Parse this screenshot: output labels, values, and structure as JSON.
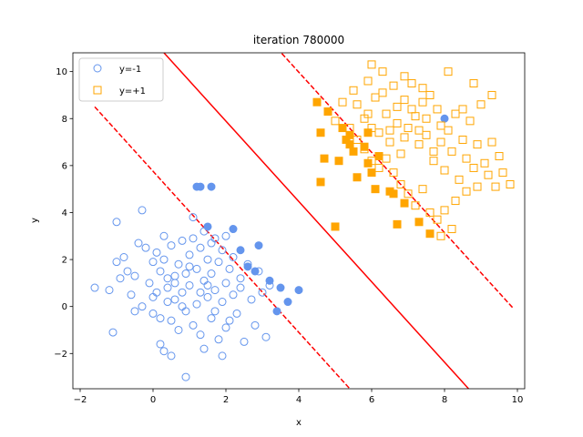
{
  "chart_data": {
    "type": "scatter",
    "title": "iteration 780000",
    "xlabel": "x",
    "ylabel": "y",
    "xlim": [
      -2.2,
      10.2
    ],
    "ylim": [
      -3.5,
      10.8
    ],
    "xticks": [
      -2,
      0,
      2,
      4,
      6,
      8,
      10
    ],
    "yticks": [
      -2,
      0,
      2,
      4,
      6,
      8,
      10
    ],
    "legend_position": "top-left",
    "series": [
      {
        "name": "y=-1",
        "marker": "circle",
        "color": "#6495ED",
        "filled": false,
        "points": [
          [
            -1.6,
            0.8
          ],
          [
            -1.2,
            0.7
          ],
          [
            -1.1,
            -1.1
          ],
          [
            -1.0,
            1.9
          ],
          [
            -1.0,
            3.6
          ],
          [
            -0.9,
            1.2
          ],
          [
            -0.8,
            2.1
          ],
          [
            -0.7,
            1.5
          ],
          [
            -0.6,
            0.5
          ],
          [
            -0.5,
            1.3
          ],
          [
            -0.4,
            2.7
          ],
          [
            -0.3,
            0.0
          ],
          [
            -0.3,
            4.1
          ],
          [
            -0.2,
            2.5
          ],
          [
            -0.1,
            1.0
          ],
          [
            0.0,
            1.9
          ],
          [
            0.0,
            -0.3
          ],
          [
            0.1,
            2.3
          ],
          [
            0.1,
            0.6
          ],
          [
            0.2,
            -0.5
          ],
          [
            0.2,
            1.5
          ],
          [
            0.3,
            3.0
          ],
          [
            0.3,
            2.0
          ],
          [
            0.4,
            0.2
          ],
          [
            0.4,
            1.2
          ],
          [
            0.5,
            -0.6
          ],
          [
            0.5,
            2.6
          ],
          [
            0.6,
            1.0
          ],
          [
            0.6,
            0.3
          ],
          [
            0.7,
            1.8
          ],
          [
            0.7,
            -1.0
          ],
          [
            0.8,
            2.8
          ],
          [
            0.8,
            0.6
          ],
          [
            0.9,
            1.4
          ],
          [
            0.9,
            -0.2
          ],
          [
            1.0,
            2.2
          ],
          [
            1.0,
            0.9
          ],
          [
            1.1,
            3.8
          ],
          [
            1.1,
            -0.8
          ],
          [
            1.2,
            1.6
          ],
          [
            1.2,
            0.1
          ],
          [
            1.3,
            2.5
          ],
          [
            1.3,
            -1.2
          ],
          [
            1.4,
            1.1
          ],
          [
            1.4,
            3.2
          ],
          [
            1.5,
            0.4
          ],
          [
            1.5,
            2.0
          ],
          [
            1.6,
            -0.5
          ],
          [
            1.6,
            1.4
          ],
          [
            1.7,
            2.9
          ],
          [
            1.7,
            0.7
          ],
          [
            1.8,
            -1.4
          ],
          [
            1.8,
            1.9
          ],
          [
            1.9,
            0.2
          ],
          [
            1.9,
            2.4
          ],
          [
            2.0,
            1.0
          ],
          [
            2.0,
            -0.9
          ],
          [
            2.1,
            1.6
          ],
          [
            2.2,
            0.5
          ],
          [
            2.2,
            2.1
          ],
          [
            2.3,
            -0.3
          ],
          [
            2.4,
            1.2
          ],
          [
            2.4,
            0.8
          ],
          [
            2.5,
            -1.5
          ],
          [
            2.6,
            1.8
          ],
          [
            2.7,
            0.3
          ],
          [
            2.8,
            -0.8
          ],
          [
            2.9,
            1.5
          ],
          [
            3.0,
            0.6
          ],
          [
            3.1,
            -1.3
          ],
          [
            3.2,
            0.9
          ],
          [
            -0.5,
            -0.2
          ],
          [
            0.0,
            0.4
          ],
          [
            0.3,
            -1.9
          ],
          [
            0.5,
            -2.1
          ],
          [
            0.9,
            -3.0
          ],
          [
            1.4,
            -1.8
          ],
          [
            1.9,
            -2.1
          ],
          [
            0.2,
            -1.6
          ],
          [
            1.1,
            2.9
          ],
          [
            1.6,
            2.7
          ],
          [
            2.0,
            3.0
          ],
          [
            0.6,
            1.3
          ],
          [
            1.0,
            1.7
          ],
          [
            1.5,
            0.9
          ],
          [
            0.8,
            0.0
          ],
          [
            1.3,
            0.6
          ],
          [
            1.7,
            -0.2
          ],
          [
            2.1,
            -0.6
          ],
          [
            0.4,
            0.8
          ]
        ]
      },
      {
        "name": "y=-1",
        "marker": "circle",
        "color": "#6495ED",
        "filled": true,
        "points": [
          [
            1.2,
            5.1
          ],
          [
            1.3,
            5.1
          ],
          [
            1.6,
            5.1
          ],
          [
            1.5,
            3.4
          ],
          [
            2.2,
            3.3
          ],
          [
            2.9,
            2.6
          ],
          [
            2.4,
            2.4
          ],
          [
            2.6,
            1.7
          ],
          [
            2.8,
            1.5
          ],
          [
            3.2,
            1.1
          ],
          [
            3.5,
            0.8
          ],
          [
            3.7,
            0.2
          ],
          [
            3.4,
            -0.2
          ],
          [
            4.0,
            0.7
          ],
          [
            8.0,
            8.0
          ]
        ]
      },
      {
        "name": "y=+1",
        "marker": "square",
        "color": "#FFA500",
        "filled": false,
        "points": [
          [
            5.5,
            9.2
          ],
          [
            5.6,
            8.6
          ],
          [
            5.8,
            8.0
          ],
          [
            5.9,
            9.6
          ],
          [
            6.0,
            10.3
          ],
          [
            6.1,
            8.9
          ],
          [
            6.2,
            7.4
          ],
          [
            6.3,
            9.1
          ],
          [
            6.4,
            8.2
          ],
          [
            6.5,
            7.0
          ],
          [
            6.6,
            9.4
          ],
          [
            6.7,
            8.5
          ],
          [
            6.8,
            6.5
          ],
          [
            6.9,
            8.8
          ],
          [
            7.0,
            7.6
          ],
          [
            7.1,
            9.5
          ],
          [
            7.2,
            8.1
          ],
          [
            7.3,
            6.9
          ],
          [
            7.4,
            8.7
          ],
          [
            7.5,
            7.3
          ],
          [
            7.6,
            9.0
          ],
          [
            7.7,
            6.2
          ],
          [
            7.8,
            8.4
          ],
          [
            7.9,
            7.0
          ],
          [
            8.0,
            5.8
          ],
          [
            8.1,
            7.5
          ],
          [
            8.2,
            6.6
          ],
          [
            8.3,
            8.2
          ],
          [
            8.4,
            5.4
          ],
          [
            8.5,
            7.1
          ],
          [
            8.6,
            6.3
          ],
          [
            8.7,
            7.9
          ],
          [
            8.8,
            5.9
          ],
          [
            8.9,
            6.9
          ],
          [
            9.0,
            8.6
          ],
          [
            9.1,
            6.1
          ],
          [
            9.2,
            5.6
          ],
          [
            9.3,
            7.0
          ],
          [
            9.4,
            5.1
          ],
          [
            9.8,
            5.2
          ],
          [
            5.0,
            7.9
          ],
          [
            5.2,
            8.7
          ],
          [
            5.4,
            7.6
          ],
          [
            5.6,
            7.1
          ],
          [
            5.8,
            6.7
          ],
          [
            6.0,
            6.2
          ],
          [
            6.2,
            5.9
          ],
          [
            6.4,
            6.3
          ],
          [
            6.6,
            5.7
          ],
          [
            6.8,
            5.2
          ],
          [
            7.0,
            4.8
          ],
          [
            7.2,
            4.3
          ],
          [
            7.4,
            5.0
          ],
          [
            7.6,
            4.0
          ],
          [
            7.8,
            3.7
          ],
          [
            8.0,
            4.1
          ],
          [
            8.2,
            3.3
          ],
          [
            8.3,
            4.5
          ],
          [
            7.9,
            3.0
          ],
          [
            8.6,
            4.9
          ],
          [
            8.9,
            5.1
          ],
          [
            9.5,
            6.4
          ],
          [
            9.6,
            5.7
          ],
          [
            9.3,
            9.0
          ],
          [
            8.8,
            9.5
          ],
          [
            8.1,
            10.0
          ],
          [
            6.9,
            9.8
          ],
          [
            6.3,
            10.0
          ],
          [
            7.4,
            9.3
          ],
          [
            5.9,
            8.2
          ],
          [
            6.7,
            7.8
          ],
          [
            7.1,
            8.4
          ],
          [
            7.5,
            8.0
          ],
          [
            7.3,
            7.5
          ],
          [
            6.5,
            7.5
          ],
          [
            7.9,
            7.7
          ],
          [
            8.5,
            8.4
          ],
          [
            6.0,
            7.6
          ],
          [
            6.9,
            7.2
          ],
          [
            7.7,
            6.6
          ]
        ]
      },
      {
        "name": "y=+1",
        "marker": "square",
        "color": "#FFA500",
        "filled": true,
        "points": [
          [
            4.5,
            8.7
          ],
          [
            4.6,
            7.4
          ],
          [
            4.8,
            8.3
          ],
          [
            4.7,
            6.3
          ],
          [
            5.1,
            6.2
          ],
          [
            5.2,
            7.6
          ],
          [
            5.3,
            7.1
          ],
          [
            5.4,
            7.3
          ],
          [
            5.5,
            6.6
          ],
          [
            5.6,
            5.5
          ],
          [
            5.8,
            6.8
          ],
          [
            5.9,
            6.1
          ],
          [
            6.0,
            5.7
          ],
          [
            6.1,
            5.0
          ],
          [
            6.2,
            6.4
          ],
          [
            6.5,
            4.9
          ],
          [
            6.6,
            4.8
          ],
          [
            6.7,
            3.5
          ],
          [
            6.9,
            4.4
          ],
          [
            7.3,
            3.6
          ],
          [
            7.6,
            3.1
          ],
          [
            4.6,
            5.3
          ],
          [
            5.0,
            3.4
          ],
          [
            5.4,
            6.9
          ],
          [
            5.9,
            7.4
          ]
        ]
      }
    ],
    "lines": [
      {
        "style": "solid",
        "color": "#FF0000",
        "x": [
          0.3,
          8.66
        ],
        "y": [
          10.8,
          -3.5
        ]
      },
      {
        "style": "dashed",
        "color": "#FF0000",
        "x": [
          -1.6,
          5.4
        ],
        "y": [
          8.5,
          -3.5
        ]
      },
      {
        "style": "dashed",
        "color": "#FF0000",
        "x": [
          3.4,
          9.9
        ],
        "y": [
          11.0,
          -0.1
        ]
      }
    ]
  }
}
